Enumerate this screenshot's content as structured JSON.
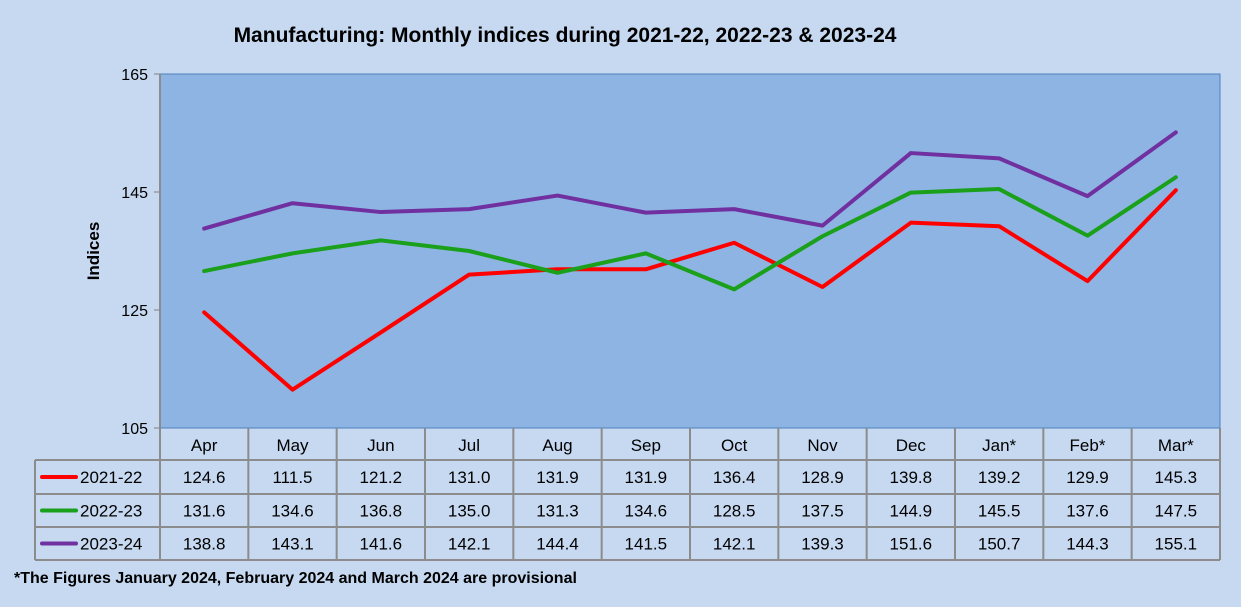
{
  "chart_data": {
    "type": "line",
    "title": "Manufacturing: Monthly indices during 2021-22, 2022-23 & 2023-24",
    "xlabel": "",
    "ylabel": "Indices",
    "ylim": [
      105,
      165
    ],
    "yticks": [
      105,
      125,
      145,
      165
    ],
    "grid": false,
    "legend": "data-table-left",
    "categories": [
      "Apr",
      "May",
      "Jun",
      "Jul",
      "Aug",
      "Sep",
      "Oct",
      "Nov",
      "Dec",
      "Jan*",
      "Feb*",
      "Mar*"
    ],
    "series": [
      {
        "name": "2021-22",
        "color": "#FF0000",
        "values": [
          124.6,
          111.5,
          121.2,
          131.0,
          131.9,
          131.9,
          136.4,
          128.9,
          139.8,
          139.2,
          129.9,
          145.3
        ]
      },
      {
        "name": "2022-23",
        "color": "#1AA01A",
        "values": [
          131.6,
          134.6,
          136.8,
          135.0,
          131.3,
          134.6,
          128.5,
          137.5,
          144.9,
          145.5,
          137.6,
          147.5
        ]
      },
      {
        "name": "2023-24",
        "color": "#7030A0",
        "values": [
          138.8,
          143.1,
          141.6,
          142.1,
          144.4,
          141.5,
          142.1,
          139.3,
          151.6,
          150.7,
          144.3,
          155.1
        ]
      }
    ]
  },
  "colors": {
    "background": "#C6D9F1",
    "plot_area": "#8EB4E3"
  },
  "footnote": "*The Figures January 2024, February 2024 and March 2024 are provisional"
}
